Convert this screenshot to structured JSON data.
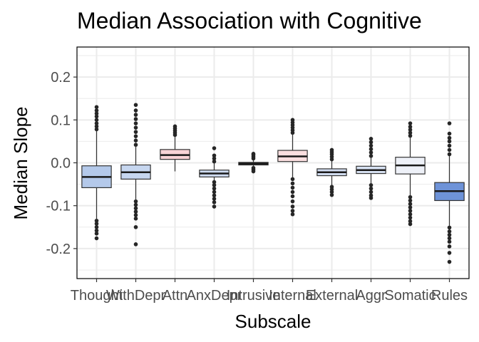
{
  "chart_data": {
    "type": "box",
    "title": "Median Association with Cognitive",
    "xlabel": "Subscale",
    "ylabel": "Median Slope",
    "ylim": [
      -0.27,
      0.27
    ],
    "yticks": [
      0.2,
      0.1,
      0.0,
      -0.1,
      -0.2
    ],
    "ytick_labels": [
      "0.2",
      "0.1",
      "0.0",
      "-0.1",
      "-0.2"
    ],
    "grid": true,
    "legend": "none",
    "colors": {
      "panel_border": "#000000",
      "grid": "#ebebeb",
      "outlier": "#262626"
    },
    "categories": [
      "Thought",
      "WithDepr",
      "Attn",
      "AnxDepr",
      "Intrusive",
      "Internal",
      "External",
      "Aggr",
      "Somatic",
      "Rules"
    ],
    "boxes": [
      {
        "label": "Thought",
        "q1": -0.058,
        "median": -0.033,
        "q3": -0.007,
        "whisker_low": -0.133,
        "whisker_high": 0.075,
        "outliers_low": [
          -0.135,
          -0.142,
          -0.15,
          -0.158,
          -0.165,
          -0.176
        ],
        "outliers_high": [
          0.078,
          0.085,
          0.092,
          0.1,
          0.108,
          0.115,
          0.122,
          0.13
        ],
        "fill": "#b4c9ea"
      },
      {
        "label": "WithDepr",
        "q1": -0.038,
        "median": -0.022,
        "q3": -0.005,
        "whisker_low": -0.088,
        "whisker_high": 0.04,
        "outliers_low": [
          -0.09,
          -0.098,
          -0.106,
          -0.114,
          -0.122,
          -0.13,
          -0.15,
          -0.19
        ],
        "outliers_high": [
          0.042,
          0.052,
          0.062,
          0.072,
          0.082,
          0.092,
          0.102,
          0.112,
          0.122,
          0.135
        ],
        "fill": "#c6d6ef"
      },
      {
        "label": "Attn",
        "q1": 0.008,
        "median": 0.018,
        "q3": 0.031,
        "whisker_low": -0.02,
        "whisker_high": 0.062,
        "outliers_low": [],
        "outliers_high": [
          0.065,
          0.07,
          0.075,
          0.08,
          0.085
        ],
        "fill": "#f8d3d6"
      },
      {
        "label": "AnxDepr",
        "q1": -0.033,
        "median": -0.025,
        "q3": -0.017,
        "whisker_low": -0.042,
        "whisker_high": 0.0,
        "outliers_low": [
          -0.045,
          -0.052,
          -0.06,
          -0.068,
          -0.076,
          -0.084,
          -0.092,
          -0.102
        ],
        "outliers_high": [
          0.003,
          0.01,
          0.017,
          0.034
        ],
        "fill": "#cfdcf1"
      },
      {
        "label": "Intrusive",
        "q1": -0.005,
        "median": -0.002,
        "q3": 0.001,
        "whisker_low": -0.01,
        "whisker_high": 0.007,
        "outliers_low": [
          -0.012,
          -0.016,
          -0.02
        ],
        "outliers_high": [
          0.01,
          0.014,
          0.018,
          0.021
        ],
        "fill": "#e8ecf5"
      },
      {
        "label": "Internal",
        "q1": 0.003,
        "median": 0.015,
        "q3": 0.029,
        "whisker_low": -0.035,
        "whisker_high": 0.068,
        "outliers_low": [
          -0.038,
          -0.048,
          -0.058,
          -0.068,
          -0.078,
          -0.09,
          -0.102,
          -0.112,
          -0.12
        ],
        "outliers_high": [
          0.07,
          0.076,
          0.082,
          0.088,
          0.094,
          0.1
        ],
        "fill": "#fbdfe0"
      },
      {
        "label": "External",
        "q1": -0.03,
        "median": -0.022,
        "q3": -0.014,
        "whisker_low": -0.053,
        "whisker_high": 0.005,
        "outliers_low": [
          -0.056,
          -0.062,
          -0.068,
          -0.075
        ],
        "outliers_high": [
          0.008,
          0.014,
          0.02,
          0.025,
          0.03
        ],
        "fill": "#d2ddf1"
      },
      {
        "label": "Aggr",
        "q1": -0.025,
        "median": -0.017,
        "q3": -0.008,
        "whisker_low": -0.05,
        "whisker_high": 0.013,
        "outliers_low": [
          -0.052,
          -0.06,
          -0.068,
          -0.076,
          -0.082
        ],
        "outliers_high": [
          0.016,
          0.024,
          0.032,
          0.04,
          0.048,
          0.056
        ],
        "fill": "#d8e2f3"
      },
      {
        "label": "Somatic",
        "q1": -0.026,
        "median": -0.006,
        "q3": 0.013,
        "whisker_low": -0.078,
        "whisker_high": 0.06,
        "outliers_low": [
          -0.08,
          -0.088,
          -0.096,
          -0.104,
          -0.112,
          -0.12,
          -0.128,
          -0.136,
          -0.143
        ],
        "outliers_high": [
          0.063,
          0.07,
          0.077,
          0.084,
          0.092
        ],
        "fill": "#eef1f8"
      },
      {
        "label": "Rules",
        "q1": -0.088,
        "median": -0.066,
        "q3": -0.046,
        "whisker_low": -0.148,
        "whisker_high": 0.016,
        "outliers_low": [
          -0.151,
          -0.16,
          -0.168,
          -0.176,
          -0.184,
          -0.195,
          -0.21,
          -0.231
        ],
        "outliers_high": [
          0.02,
          0.03,
          0.04,
          0.05,
          0.058,
          0.068,
          0.092
        ],
        "fill": "#6e93d8"
      }
    ]
  }
}
